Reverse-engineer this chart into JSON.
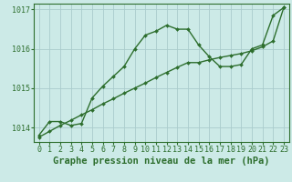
{
  "title": "",
  "xlabel": "Graphe pression niveau de la mer (hPa)",
  "background_color": "#cceae7",
  "grid_color": "#aacccc",
  "line_color": "#2d6e2d",
  "marker": "D",
  "marker_size": 2.0,
  "xlim": [
    -0.5,
    23.5
  ],
  "ylim": [
    1013.63,
    1017.15
  ],
  "yticks": [
    1014,
    1015,
    1016,
    1017
  ],
  "xticks": [
    0,
    1,
    2,
    3,
    4,
    5,
    6,
    7,
    8,
    9,
    10,
    11,
    12,
    13,
    14,
    15,
    16,
    17,
    18,
    19,
    20,
    21,
    22,
    23
  ],
  "series1_x": [
    0,
    1,
    2,
    3,
    4,
    5,
    6,
    7,
    8,
    9,
    10,
    11,
    12,
    13,
    14,
    15,
    16,
    17,
    18,
    19,
    20,
    21,
    22,
    23
  ],
  "series1_y": [
    1013.8,
    1014.15,
    1014.15,
    1014.05,
    1014.1,
    1014.75,
    1015.05,
    1015.3,
    1015.55,
    1016.0,
    1016.35,
    1016.45,
    1016.6,
    1016.5,
    1016.5,
    1016.1,
    1015.8,
    1015.55,
    1015.55,
    1015.6,
    1016.0,
    1016.1,
    1016.85,
    1017.05
  ],
  "series2_x": [
    0,
    23
  ],
  "series2_y": [
    1013.75,
    1017.05
  ],
  "series2_mid_x": [
    0,
    1,
    2,
    3,
    4,
    5,
    6,
    7,
    8,
    9,
    10,
    11,
    12,
    13,
    14,
    15,
    16,
    17,
    18,
    19,
    20,
    21,
    22,
    23
  ],
  "series2_mid_y": [
    1013.75,
    1013.9,
    1014.05,
    1014.18,
    1014.32,
    1014.45,
    1014.6,
    1014.73,
    1014.87,
    1015.0,
    1015.13,
    1015.27,
    1015.4,
    1015.53,
    1015.65,
    1015.65,
    1015.72,
    1015.78,
    1015.83,
    1015.88,
    1015.95,
    1016.05,
    1016.2,
    1017.05
  ],
  "xlabel_fontsize": 7.5,
  "tick_fontsize": 6.0,
  "line_width": 1.0
}
